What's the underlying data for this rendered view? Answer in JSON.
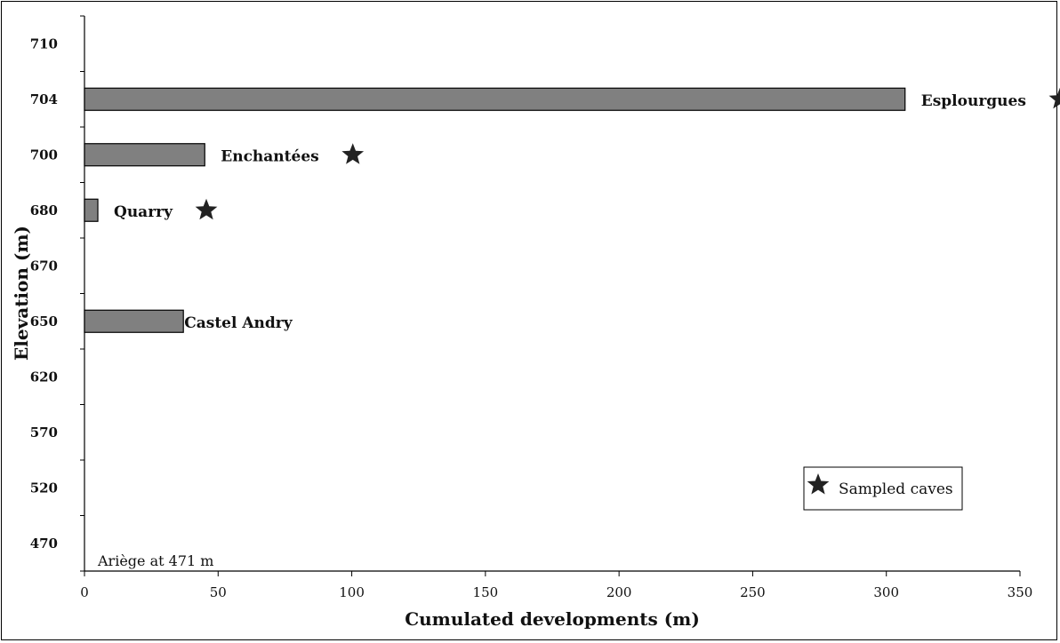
{
  "chart_data": {
    "type": "bar",
    "orientation": "horizontal",
    "title": "",
    "xlabel": "Cumulated developments (m)",
    "ylabel": "Elevation (m)",
    "xlim": [
      0,
      350
    ],
    "xticks": [
      "0",
      "50",
      "100",
      "150",
      "200",
      "250",
      "300",
      "350"
    ],
    "categories": [
      "710",
      "704",
      "700",
      "680",
      "670",
      "650",
      "620",
      "570",
      "520",
      "470"
    ],
    "values": [
      0,
      307,
      45,
      5,
      0,
      37,
      0,
      0,
      0,
      0
    ],
    "bars": [
      {
        "elevation": "704",
        "value": 307,
        "label": "Esplourgues",
        "sampled": true
      },
      {
        "elevation": "700",
        "value": 45,
        "label": "Enchantées",
        "sampled": true
      },
      {
        "elevation": "680",
        "value": 5,
        "label": "Quarry",
        "sampled": true
      },
      {
        "elevation": "650",
        "value": 37,
        "label": "Castel Andry",
        "sampled": false
      }
    ],
    "annotation": "Ariège at 471 m",
    "legend": {
      "label": "Sampled caves",
      "position": "bottom-right",
      "marker": "star-icon"
    },
    "colors": {
      "bar_fill": "#808080",
      "bar_stroke": "#000000",
      "star": "#222222"
    },
    "grid": false
  }
}
